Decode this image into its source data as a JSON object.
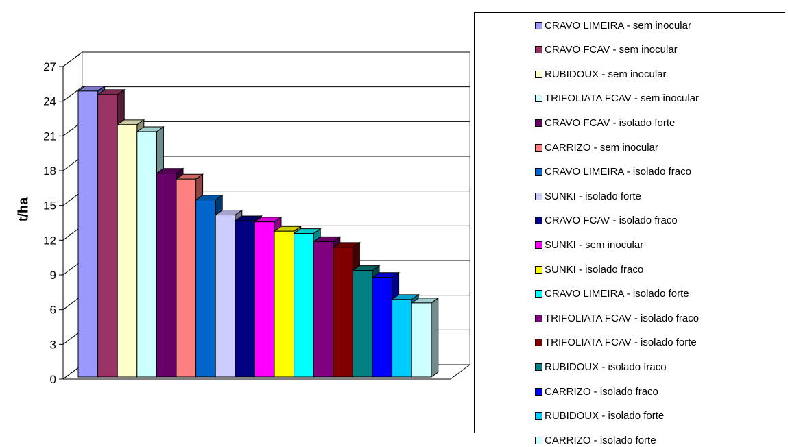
{
  "chart_data": {
    "type": "bar",
    "ylabel": "t/ha",
    "xlabel": "",
    "ylim": [
      0,
      27
    ],
    "yticks": [
      0,
      3,
      6,
      9,
      12,
      15,
      18,
      21,
      24,
      27
    ],
    "grid": true,
    "legend_position": "right",
    "series": [
      {
        "name": "CRAVO LIMEIRA - sem inocular",
        "value": 24.7,
        "color": "#9999FF"
      },
      {
        "name": "CRAVO FCAV - sem inocular",
        "value": 24.4,
        "color": "#993366"
      },
      {
        "name": "RUBIDOUX - sem inocular",
        "value": 21.8,
        "color": "#FFFFCC"
      },
      {
        "name": "TRIFOLIATA FCAV - sem inocular",
        "value": 21.2,
        "color": "#CCFFFF"
      },
      {
        "name": "CRAVO FCAV - isolado forte",
        "value": 17.6,
        "color": "#660066"
      },
      {
        "name": "CARRIZO - sem inocular",
        "value": 17.1,
        "color": "#FF8080"
      },
      {
        "name": "CRAVO LIMEIRA - isolado fraco",
        "value": 15.3,
        "color": "#0066CC"
      },
      {
        "name": "SUNKI - isolado forte",
        "value": 14.0,
        "color": "#CCCCFF"
      },
      {
        "name": "CRAVO FCAV - isolado fraco",
        "value": 13.5,
        "color": "#000080"
      },
      {
        "name": "SUNKI - sem inocular",
        "value": 13.4,
        "color": "#FF00FF"
      },
      {
        "name": "SUNKI - isolado fraco",
        "value": 12.6,
        "color": "#FFFF00"
      },
      {
        "name": "CRAVO LIMEIRA - isolado forte",
        "value": 12.4,
        "color": "#00FFFF"
      },
      {
        "name": "TRIFOLIATA FCAV - isolado fraco",
        "value": 11.7,
        "color": "#800080"
      },
      {
        "name": "TRIFOLIATA FCAV - isolado forte",
        "value": 11.2,
        "color": "#800000"
      },
      {
        "name": "RUBIDOUX - isolado fraco",
        "value": 9.2,
        "color": "#008080"
      },
      {
        "name": "CARRIZO - isolado fraco",
        "value": 8.6,
        "color": "#0000FF"
      },
      {
        "name": "RUBIDOUX - isolado forte",
        "value": 6.7,
        "color": "#00CCFF"
      },
      {
        "name": "CARRIZO - isolado forte",
        "value": 6.4,
        "color": "#CCFFFF"
      }
    ]
  }
}
